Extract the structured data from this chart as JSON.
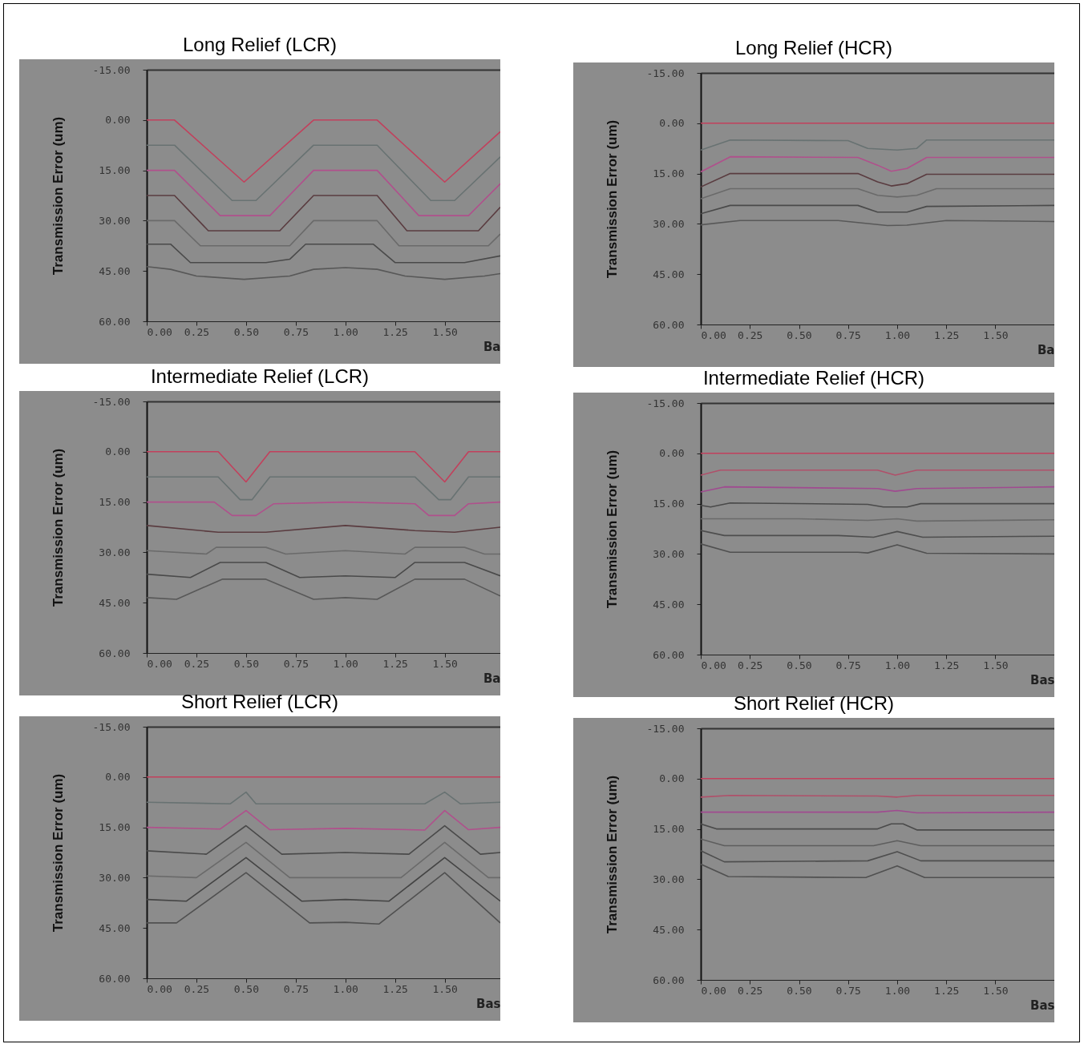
{
  "chart_data": [
    {
      "type": "line",
      "title": "Long Relief (LCR)",
      "xlabel": "Ba",
      "ylabel": "Transmission Error (um)",
      "xlim": [
        0,
        1.78
      ],
      "xticks": [
        {
          "value": 0,
          "label": "0.00"
        },
        {
          "value": 0.25,
          "label": "0.25"
        },
        {
          "value": 0.5,
          "label": "0.50"
        },
        {
          "value": 0.75,
          "label": "0.75"
        },
        {
          "value": 1,
          "label": "1.00"
        },
        {
          "value": 1.25,
          "label": "1.25"
        },
        {
          "value": 1.5,
          "label": "1.50"
        }
      ],
      "ylim": [
        60,
        -15
      ],
      "yticks": [
        {
          "value": -15,
          "label": "-15.00"
        },
        {
          "value": 0,
          "label": "0.00"
        },
        {
          "value": 15,
          "label": "15.00"
        },
        {
          "value": 30,
          "label": "30.00"
        },
        {
          "value": 45,
          "label": "45.00"
        },
        {
          "value": 60,
          "label": "60.00"
        }
      ],
      "series": [
        {
          "color": "#c2405c",
          "x": [
            0,
            0.14,
            0.49,
            0.84,
            1.16,
            1.5,
            1.78
          ],
          "values": [
            0,
            0,
            18.5,
            0,
            0,
            18.5,
            3.5
          ]
        },
        {
          "color": "#687272",
          "x": [
            0,
            0.14,
            0.43,
            0.55,
            0.84,
            1.16,
            1.43,
            1.55,
            1.78
          ],
          "values": [
            7.5,
            7.5,
            24,
            24,
            7.5,
            7.5,
            24,
            24,
            11
          ]
        },
        {
          "color": "#b0508c",
          "x": [
            0,
            0.14,
            0.37,
            0.62,
            0.84,
            1.16,
            1.37,
            1.62,
            1.78
          ],
          "values": [
            15,
            15,
            28.5,
            28.5,
            15,
            15,
            28.5,
            28.5,
            19
          ]
        },
        {
          "color": "#5a3c40",
          "x": [
            0,
            0.14,
            0.31,
            0.67,
            0.84,
            1.16,
            1.31,
            1.67,
            1.78
          ],
          "values": [
            22.5,
            22.5,
            33,
            33,
            22.5,
            22.5,
            33,
            33,
            26
          ]
        },
        {
          "color": "#6a6a6a",
          "x": [
            0,
            0.14,
            0.27,
            0.72,
            0.84,
            1.16,
            1.27,
            1.72,
            1.78
          ],
          "values": [
            30,
            30,
            37.5,
            37.5,
            30,
            30,
            37.5,
            37.5,
            34
          ]
        },
        {
          "color": "#4a4a4a",
          "x": [
            0,
            0.12,
            0.22,
            0.6,
            0.72,
            0.8,
            1.14,
            1.25,
            1.6,
            1.78
          ],
          "values": [
            37,
            37,
            42.5,
            42.5,
            41.5,
            37,
            37,
            42.5,
            42.5,
            40.5
          ]
        },
        {
          "color": "#585858",
          "x": [
            0,
            0.12,
            0.25,
            0.49,
            0.72,
            0.84,
            1,
            1.16,
            1.3,
            1.5,
            1.7,
            1.78
          ],
          "values": [
            43.7,
            44.5,
            46.5,
            47.5,
            46.5,
            44.5,
            44,
            44.5,
            46.5,
            47.5,
            46.5,
            45.8
          ]
        }
      ]
    },
    {
      "type": "line",
      "title": "Long Relief (HCR)",
      "xlabel": "Ba",
      "ylabel": "Transmission Error (um)",
      "xlim": [
        0,
        1.8
      ],
      "xticks": [
        {
          "value": 0,
          "label": "0.00"
        },
        {
          "value": 0.25,
          "label": "0.25"
        },
        {
          "value": 0.5,
          "label": "0.50"
        },
        {
          "value": 0.75,
          "label": "0.75"
        },
        {
          "value": 1,
          "label": "1.00"
        },
        {
          "value": 1.25,
          "label": "1.25"
        },
        {
          "value": 1.5,
          "label": "1.50"
        }
      ],
      "ylim": [
        60,
        -15
      ],
      "yticks": [
        {
          "value": -15,
          "label": "-15.00"
        },
        {
          "value": 0,
          "label": "0.00"
        },
        {
          "value": 15,
          "label": "15.00"
        },
        {
          "value": 30,
          "label": "30.00"
        },
        {
          "value": 45,
          "label": "45.00"
        },
        {
          "value": 60,
          "label": "60.00"
        }
      ],
      "series": [
        {
          "color": "#c2405c",
          "x": [
            0,
            1.8
          ],
          "values": [
            0,
            0
          ]
        },
        {
          "color": "#687272",
          "x": [
            0,
            0.15,
            0.75,
            0.85,
            1,
            1.1,
            1.15,
            1.8
          ],
          "values": [
            8,
            5,
            5.2,
            7.5,
            8,
            7.5,
            5,
            5
          ]
        },
        {
          "color": "#b0508c",
          "x": [
            0,
            0.15,
            0.8,
            0.9,
            0.97,
            1.05,
            1.15,
            1.8
          ],
          "values": [
            14.5,
            10,
            10.2,
            12.5,
            14.3,
            13.5,
            10.2,
            10.2
          ]
        },
        {
          "color": "#5a3c40",
          "x": [
            0,
            0.15,
            0.8,
            0.9,
            0.97,
            1.05,
            1.15,
            1.8
          ],
          "values": [
            19,
            15,
            15,
            17.5,
            18.7,
            18,
            15.2,
            15.2
          ]
        },
        {
          "color": "#6a6a6a",
          "x": [
            0,
            0.15,
            0.8,
            0.9,
            1,
            1.1,
            1.2,
            1.8
          ],
          "values": [
            22.5,
            19.5,
            19.5,
            21.5,
            22,
            21.5,
            19.5,
            19.5
          ]
        },
        {
          "color": "#4a4a4a",
          "x": [
            0,
            0.15,
            0.8,
            0.9,
            1.05,
            1.15,
            1.8
          ],
          "values": [
            27,
            24.5,
            24.5,
            26.5,
            26.5,
            24.8,
            24.5
          ]
        },
        {
          "color": "#585858",
          "x": [
            0,
            0.2,
            0.7,
            0.95,
            1.05,
            1.25,
            1.8
          ],
          "values": [
            30.3,
            29,
            29,
            30.5,
            30.4,
            29,
            29.3
          ]
        }
      ]
    },
    {
      "type": "line",
      "title": "Intermediate Relief (LCR)",
      "xlabel": "Ba",
      "ylabel": "Transmission Error (um)",
      "xlim": [
        0,
        1.78
      ],
      "xticks": [
        {
          "value": 0,
          "label": "0.00"
        },
        {
          "value": 0.25,
          "label": "0.25"
        },
        {
          "value": 0.5,
          "label": "0.50"
        },
        {
          "value": 0.75,
          "label": "0.75"
        },
        {
          "value": 1,
          "label": "1.00"
        },
        {
          "value": 1.25,
          "label": "1.25"
        },
        {
          "value": 1.5,
          "label": "1.50"
        }
      ],
      "ylim": [
        60,
        -15
      ],
      "yticks": [
        {
          "value": -15,
          "label": "-15.00"
        },
        {
          "value": 0,
          "label": "0.00"
        },
        {
          "value": 15,
          "label": "15.00"
        },
        {
          "value": 30,
          "label": "30.00"
        },
        {
          "value": 45,
          "label": "45.00"
        },
        {
          "value": 60,
          "label": "60.00"
        }
      ],
      "series": [
        {
          "color": "#c2405c",
          "x": [
            0,
            0.36,
            0.5,
            0.62,
            1.35,
            1.5,
            1.62,
            1.78
          ],
          "values": [
            0,
            0,
            9,
            0,
            0,
            9,
            0,
            0
          ]
        },
        {
          "color": "#687272",
          "x": [
            0,
            0.36,
            0.47,
            0.53,
            0.62,
            1.35,
            1.47,
            1.53,
            1.62,
            1.78
          ],
          "values": [
            7.5,
            7.5,
            14.3,
            14.3,
            7.5,
            7.5,
            14.3,
            14.3,
            7.5,
            7.5
          ]
        },
        {
          "color": "#b0508c",
          "x": [
            0,
            0.34,
            0.43,
            0.55,
            0.64,
            1,
            1.35,
            1.42,
            1.55,
            1.62,
            1.78
          ],
          "values": [
            15,
            15,
            19,
            19,
            15.5,
            15,
            15.5,
            19,
            19,
            15.5,
            15
          ]
        },
        {
          "color": "#5a3c40",
          "x": [
            0,
            0.36,
            0.6,
            1,
            1.35,
            1.55,
            1.78
          ],
          "values": [
            22,
            24,
            24,
            22,
            23.5,
            24,
            22.5
          ]
        },
        {
          "color": "#6a6a6a",
          "x": [
            0,
            0.3,
            0.35,
            0.6,
            0.7,
            1,
            1.3,
            1.35,
            1.6,
            1.7,
            1.78
          ],
          "values": [
            29.5,
            30.5,
            28.5,
            28.5,
            30.5,
            29.5,
            30.5,
            28.5,
            28.5,
            30.5,
            30.5
          ]
        },
        {
          "color": "#4a4a4a",
          "x": [
            0,
            0.22,
            0.37,
            0.6,
            0.77,
            1,
            1.25,
            1.35,
            1.6,
            1.78
          ],
          "values": [
            36.5,
            37.5,
            33,
            33,
            37.5,
            37,
            37.5,
            33,
            33,
            37
          ]
        },
        {
          "color": "#585858",
          "x": [
            0,
            0.15,
            0.38,
            0.6,
            0.84,
            1,
            1.16,
            1.35,
            1.6,
            1.78
          ],
          "values": [
            43.5,
            44,
            38,
            38,
            44,
            43.5,
            44,
            38,
            38,
            43
          ]
        }
      ]
    },
    {
      "type": "line",
      "title": "Intermediate Relief (HCR)",
      "xlabel": "Bas",
      "ylabel": "Transmission Error (um)",
      "xlim": [
        0,
        1.8
      ],
      "xticks": [
        {
          "value": 0,
          "label": "0.00"
        },
        {
          "value": 0.25,
          "label": "0.25"
        },
        {
          "value": 0.5,
          "label": "0.50"
        },
        {
          "value": 0.75,
          "label": "0.75"
        },
        {
          "value": 1,
          "label": "1.00"
        },
        {
          "value": 1.25,
          "label": "1.25"
        },
        {
          "value": 1.5,
          "label": "1.50"
        }
      ],
      "ylim": [
        60,
        -15
      ],
      "yticks": [
        {
          "value": -15,
          "label": "-15.00"
        },
        {
          "value": 0,
          "label": "0.00"
        },
        {
          "value": 15,
          "label": "15.00"
        },
        {
          "value": 30,
          "label": "30.00"
        },
        {
          "value": 45,
          "label": "45.00"
        },
        {
          "value": 60,
          "label": "60.00"
        }
      ],
      "series": [
        {
          "color": "#c2405c",
          "x": [
            0,
            1.8
          ],
          "values": [
            0,
            0
          ]
        },
        {
          "color": "#b0506a",
          "x": [
            0,
            0.1,
            0.9,
            0.99,
            1.1,
            1.8
          ],
          "values": [
            6.5,
            5,
            5,
            6.5,
            5,
            5
          ]
        },
        {
          "color": "#a04a90",
          "x": [
            0,
            0.12,
            0.9,
            0.99,
            1.1,
            1.8
          ],
          "values": [
            11.5,
            10,
            10.5,
            11.3,
            10.5,
            10
          ]
        },
        {
          "color": "#4a4a4a",
          "x": [
            0,
            0.05,
            0.15,
            0.85,
            0.93,
            1.05,
            1.12,
            1.8
          ],
          "values": [
            15.5,
            16,
            14.8,
            15.2,
            16,
            16,
            15,
            15
          ]
        },
        {
          "color": "#6a6a6a",
          "x": [
            0,
            0.5,
            0.85,
            1,
            1.1,
            1.8
          ],
          "values": [
            19.5,
            19.5,
            20,
            19.5,
            20.2,
            19.8
          ]
        },
        {
          "color": "#4e4e4e",
          "x": [
            0,
            0.12,
            0.7,
            0.88,
            1,
            1.13,
            1.8
          ],
          "values": [
            23,
            24.5,
            24.5,
            25,
            23.3,
            25,
            24.7
          ]
        },
        {
          "color": "#505050",
          "x": [
            0,
            0.15,
            0.8,
            0.85,
            1,
            1.15,
            1.8
          ],
          "values": [
            27,
            29.5,
            29.5,
            29.7,
            27.3,
            29.8,
            30
          ]
        }
      ]
    },
    {
      "type": "line",
      "title": "Short Relief (LCR)",
      "xlabel": "Bas",
      "ylabel": "Transmission Error (um)",
      "xlim": [
        0,
        1.78
      ],
      "xticks": [
        {
          "value": 0,
          "label": "0.00"
        },
        {
          "value": 0.25,
          "label": "0.25"
        },
        {
          "value": 0.5,
          "label": "0.50"
        },
        {
          "value": 0.75,
          "label": "0.75"
        },
        {
          "value": 1,
          "label": "1.00"
        },
        {
          "value": 1.25,
          "label": "1.25"
        },
        {
          "value": 1.5,
          "label": "1.50"
        }
      ],
      "ylim": [
        60,
        -15
      ],
      "yticks": [
        {
          "value": -15,
          "label": "-15.00"
        },
        {
          "value": 0,
          "label": "0.00"
        },
        {
          "value": 15,
          "label": "15.00"
        },
        {
          "value": 30,
          "label": "30.00"
        },
        {
          "value": 45,
          "label": "45.00"
        },
        {
          "value": 60,
          "label": "60.00"
        }
      ],
      "series": [
        {
          "color": "#c2405c",
          "x": [
            0,
            1.78
          ],
          "values": [
            0,
            0
          ]
        },
        {
          "color": "#687272",
          "x": [
            0,
            0.42,
            0.5,
            0.55,
            1.4,
            1.5,
            1.58,
            1.78
          ],
          "values": [
            7.5,
            8,
            4.5,
            8,
            8,
            4.5,
            8,
            7.5
          ]
        },
        {
          "color": "#b0508c",
          "x": [
            0,
            0.37,
            0.5,
            0.62,
            1,
            1.4,
            1.5,
            1.62,
            1.78
          ],
          "values": [
            15,
            15.5,
            10,
            15.7,
            15.3,
            15.8,
            10,
            15.7,
            15
          ]
        },
        {
          "color": "#4a4a4a",
          "x": [
            0,
            0.3,
            0.5,
            0.68,
            1,
            1.32,
            1.5,
            1.68,
            1.78
          ],
          "values": [
            22,
            23,
            14.5,
            23,
            22.5,
            23,
            14.5,
            23,
            22.5
          ]
        },
        {
          "color": "#6a6a6a",
          "x": [
            0,
            0.25,
            0.5,
            0.72,
            1.28,
            1.5,
            1.72,
            1.78
          ],
          "values": [
            29.5,
            30,
            19.5,
            30,
            30,
            19.5,
            30,
            30
          ]
        },
        {
          "color": "#444444",
          "x": [
            0,
            0.2,
            0.5,
            0.78,
            1,
            1.22,
            1.5,
            1.78
          ],
          "values": [
            36.5,
            37,
            24,
            37,
            36.5,
            37,
            24,
            37
          ]
        },
        {
          "color": "#505050",
          "x": [
            0,
            0.15,
            0.5,
            0.82,
            1,
            1.17,
            1.5,
            1.78
          ],
          "values": [
            43.5,
            43.5,
            28.5,
            43.5,
            43.3,
            43.8,
            28.5,
            43.5
          ]
        }
      ]
    },
    {
      "type": "line",
      "title": "Short Relief (HCR)",
      "xlabel": "Bas",
      "ylabel": "Transmission Error (um)",
      "xlim": [
        0,
        1.8
      ],
      "xticks": [
        {
          "value": 0,
          "label": "0.00"
        },
        {
          "value": 0.25,
          "label": "0.25"
        },
        {
          "value": 0.5,
          "label": "0.50"
        },
        {
          "value": 0.75,
          "label": "0.75"
        },
        {
          "value": 1,
          "label": "1.00"
        },
        {
          "value": 1.25,
          "label": "1.25"
        },
        {
          "value": 1.5,
          "label": "1.50"
        }
      ],
      "ylim": [
        60,
        -15
      ],
      "yticks": [
        {
          "value": -15,
          "label": "-15.00"
        },
        {
          "value": 0,
          "label": "0.00"
        },
        {
          "value": 15,
          "label": "15.00"
        },
        {
          "value": 30,
          "label": "30.00"
        },
        {
          "value": 45,
          "label": "45.00"
        },
        {
          "value": 60,
          "label": "60.00"
        }
      ],
      "series": [
        {
          "color": "#c2405c",
          "x": [
            0,
            1.8
          ],
          "values": [
            0,
            0
          ]
        },
        {
          "color": "#b0506a",
          "x": [
            0,
            0.15,
            0.9,
            1,
            1.1,
            1.8
          ],
          "values": [
            5.5,
            5,
            5.2,
            5.5,
            5,
            5
          ]
        },
        {
          "color": "#a04a90",
          "x": [
            0,
            0.9,
            1,
            1.1,
            1.8
          ],
          "values": [
            10,
            10,
            9.5,
            10.2,
            10
          ]
        },
        {
          "color": "#4a4a4a",
          "x": [
            0,
            0.08,
            0.9,
            0.97,
            1.03,
            1.1,
            1.8
          ],
          "values": [
            13.5,
            15,
            15,
            13.5,
            13.5,
            15.3,
            15.3
          ]
        },
        {
          "color": "#5e5e5e",
          "x": [
            0,
            0.12,
            0.88,
            1,
            1.12,
            1.8
          ],
          "values": [
            18,
            20,
            20,
            18.5,
            20,
            20
          ]
        },
        {
          "color": "#4e4e4e",
          "x": [
            0,
            0.12,
            0.85,
            1,
            1.12,
            1.8
          ],
          "values": [
            21.5,
            24.8,
            24.5,
            21.8,
            24.5,
            24.5
          ]
        },
        {
          "color": "#505050",
          "x": [
            0,
            0.14,
            0.84,
            1,
            1.14,
            1.8
          ],
          "values": [
            25.5,
            29.2,
            29.5,
            26,
            29.5,
            29.5
          ]
        }
      ]
    }
  ]
}
